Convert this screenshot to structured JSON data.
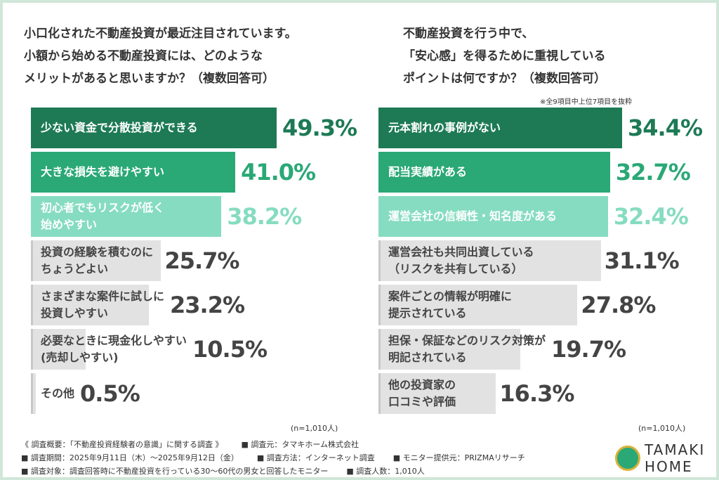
{
  "chart_data": [
    {
      "type": "bar",
      "orientation": "horizontal",
      "title": "小口化された不動産投資が最近注目されています。\n小額から始める不動産投資には、どのような\nメリットがあると思いますか？（複数回答可）",
      "categories": [
        "少ない資金で分散投資ができる",
        "大きな損失を避けやすい",
        "初心者でもリスクが低く\n始めやすい",
        "投資の経験を積むのに\nちょうどよい",
        "さまざまな案件に試しに\n投資しやすい",
        "必要なときに現金化しやすい\n(売却しやすい)",
        "その他"
      ],
      "values": [
        49.3,
        41.0,
        38.2,
        25.7,
        23.2,
        10.5,
        0.5
      ],
      "value_labels": [
        "49.3%",
        "41.0%",
        "38.2%",
        "25.7%",
        "23.2%",
        "10.5%",
        "0.5%"
      ],
      "colors": [
        "#1d7a55",
        "#2aa876",
        "#86dcc0",
        "#e2e2e2",
        "#e2e2e2",
        "#e2e2e2",
        "#e2e2e2"
      ],
      "label_colors": [
        "#ffffff",
        "#ffffff",
        "#ffffff",
        "#444444",
        "#444444",
        "#444444",
        "#444444"
      ],
      "value_label_colors": [
        "#1d7a55",
        "#2aa876",
        "#86dcc0",
        "#444444",
        "#444444",
        "#444444",
        "#444444"
      ],
      "sample": "(n=1,010人)"
    },
    {
      "type": "bar",
      "orientation": "horizontal",
      "title": "不動産投資を行う中で、\n「安心感」を得るために重視している\nポイントは何ですか？（複数回答可）",
      "note": "※全9項目中上位7項目を抜粋",
      "categories": [
        "元本割れの事例がない",
        "配当実績がある",
        "運営会社の信頼性・知名度がある",
        "運営会社も共同出資している\n（リスクを共有している）",
        "案件ごとの情報が明確に\n提示されている",
        "担保・保証などのリスク対策が\n明記されている",
        "他の投資家の\n口コミや評価"
      ],
      "values": [
        34.4,
        32.7,
        32.4,
        31.1,
        27.8,
        19.7,
        16.3
      ],
      "value_labels": [
        "34.4%",
        "32.7%",
        "32.4%",
        "31.1%",
        "27.8%",
        "19.7%",
        "16.3%"
      ],
      "colors": [
        "#1d7a55",
        "#2aa876",
        "#86dcc0",
        "#e2e2e2",
        "#e2e2e2",
        "#e2e2e2",
        "#e2e2e2"
      ],
      "label_colors": [
        "#ffffff",
        "#ffffff",
        "#ffffff",
        "#444444",
        "#444444",
        "#444444",
        "#444444"
      ],
      "value_label_colors": [
        "#1d7a55",
        "#2aa876",
        "#86dcc0",
        "#444444",
        "#444444",
        "#444444",
        "#444444"
      ],
      "sample": "(n=1,010人)"
    }
  ],
  "footer": [
    [
      "《 調査概要：「不動産投資経験者の意識」に関する調査 》",
      "■ 調査元：タマキホーム株式会社"
    ],
    [
      "■ 調査期間：2025年9月11日（木）～2025年9月12日（金）",
      "■ 調査方法：インターネット調査",
      "■ モニター提供元：PRIZMAリサーチ"
    ],
    [
      "■ 調査対象：調査回答時に不動産投資を行っている30〜60代の男女と回答したモニター",
      "■ 調査人数：1,010人"
    ]
  ],
  "logo": {
    "line1": "TAMAKI",
    "line2": "HOME"
  }
}
